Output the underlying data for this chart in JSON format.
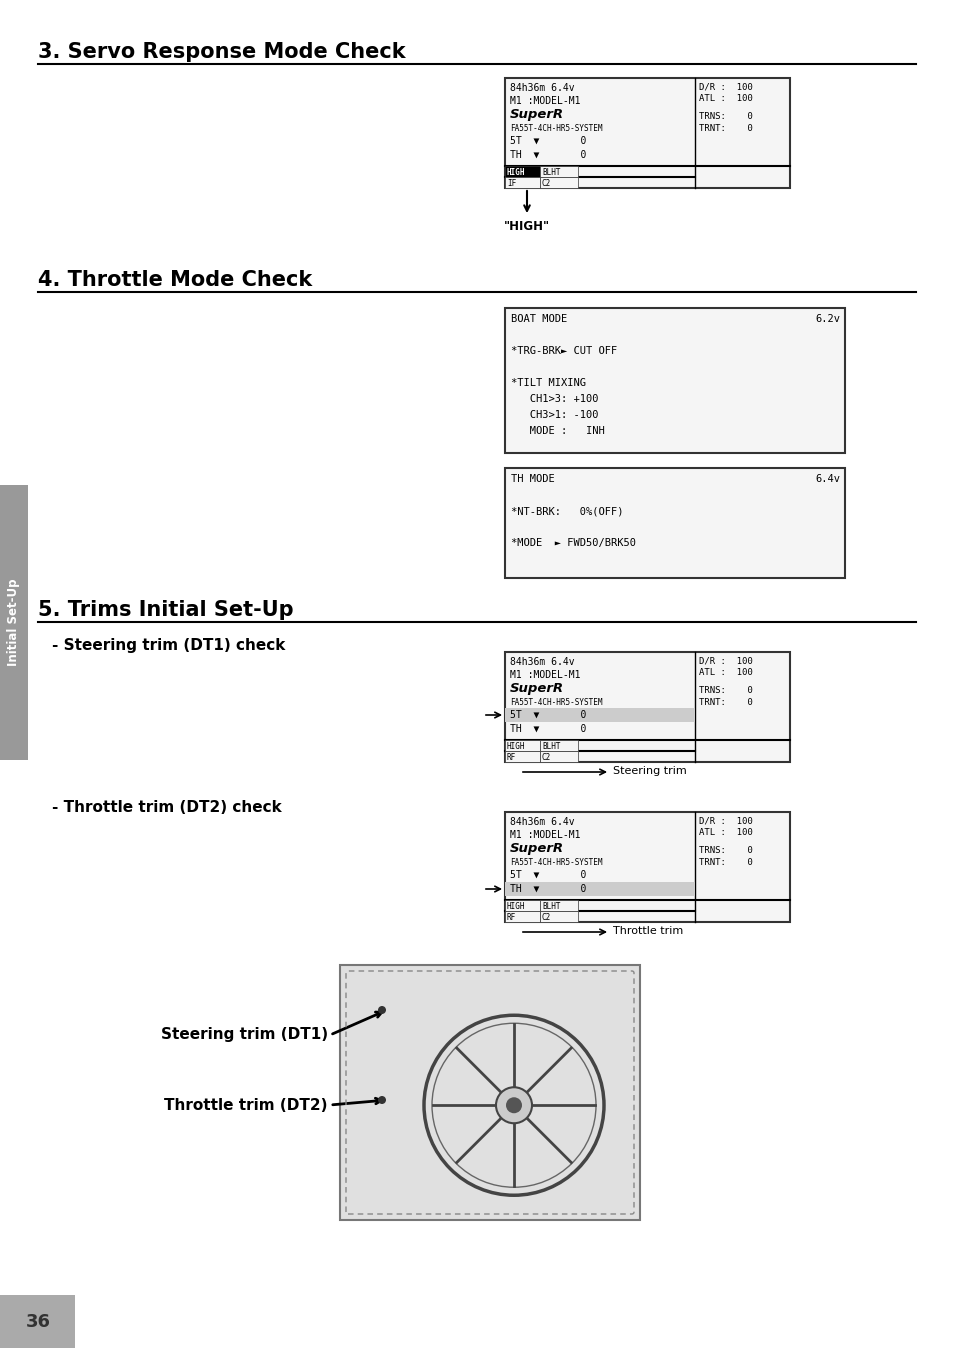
{
  "page_number": "36",
  "background_color": "#ffffff",
  "sidebar_color": "#999999",
  "sidebar_text": "Initial Set-Up",
  "section3_title": "3. Servo Response Mode Check",
  "section4_title": "4. Throttle Mode Check",
  "section5_title": "5. Trims Initial Set-Up",
  "section5_sub1": "- Steering trim (DT1) check",
  "section5_sub2": "- Throttle trim (DT2) check",
  "high_label": "\"HIGH\"",
  "steering_trim_label": "Steering trim",
  "throttle_trim_label": "Throttle trim",
  "steering_trim_dt1": "Steering trim (DT1)",
  "throttle_trim_dt2": "Throttle trim (DT2)"
}
